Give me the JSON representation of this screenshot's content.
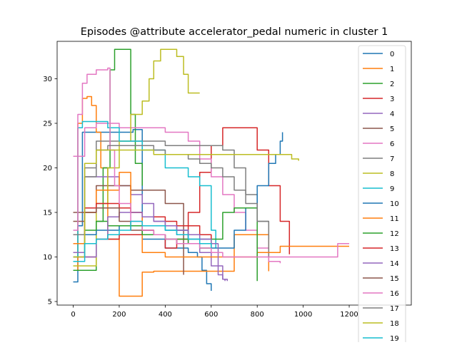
{
  "chart_data": {
    "type": "line",
    "title": "Episodes @attribute accelerator_pedal numeric in cluster 1",
    "xlabel": "",
    "ylabel": "",
    "xlim": [
      -70,
      1470
    ],
    "ylim": [
      4.6,
      34.2
    ],
    "x_ticks": [
      {
        "value": 0,
        "label": "0"
      },
      {
        "value": 200,
        "label": "200"
      },
      {
        "value": 400,
        "label": "400"
      },
      {
        "value": 600,
        "label": "600"
      },
      {
        "value": 800,
        "label": "800"
      },
      {
        "value": 1000,
        "label": "1000"
      },
      {
        "value": 1200,
        "label": "1200"
      }
    ],
    "y_ticks": [
      {
        "value": 5,
        "label": "5"
      },
      {
        "value": 10,
        "label": "10"
      },
      {
        "value": 15,
        "label": "15"
      },
      {
        "value": 20,
        "label": "20"
      },
      {
        "value": 25,
        "label": "25"
      },
      {
        "value": 30,
        "label": "30"
      }
    ],
    "grid": false,
    "legend_position": "top-right, clipped at the bottom of the figure",
    "series": [
      {
        "name": "0",
        "color": "#1f77b4",
        "x": [
          0,
          20,
          40,
          60,
          100,
          150,
          200,
          260,
          300,
          350,
          400,
          450,
          500,
          540,
          560,
          580,
          600
        ],
        "y": [
          7.2,
          13.5,
          24.0,
          24.0,
          24.0,
          24.0,
          24.0,
          24.3,
          12.0,
          12.0,
          11.0,
          11.0,
          10.5,
          10.0,
          8.5,
          7.0,
          6.2
        ]
      },
      {
        "name": "1",
        "color": "#ff7f0e",
        "x": [
          0,
          20,
          40,
          60,
          80,
          100,
          120,
          150,
          200,
          260,
          300,
          350,
          400,
          450,
          500,
          600,
          700,
          800,
          850
        ],
        "y": [
          8.5,
          25.0,
          27.8,
          28.0,
          27.0,
          24.0,
          20.0,
          12.0,
          5.6,
          5.6,
          8.3,
          8.4,
          8.4,
          8.4,
          8.4,
          8.4,
          12.5,
          12.5,
          8.4
        ]
      },
      {
        "name": "2",
        "color": "#2ca02c",
        "x": [
          0,
          60,
          100,
          130,
          160,
          180,
          200,
          240,
          250,
          270,
          300
        ],
        "y": [
          8.5,
          8.5,
          14.0,
          20.0,
          31.0,
          33.3,
          33.3,
          33.3,
          26.0,
          20.5,
          18.0
        ]
      },
      {
        "name": "3",
        "color": "#d62728",
        "x": [
          0,
          100,
          200,
          300,
          350,
          400,
          450,
          500,
          550,
          600,
          650,
          700,
          750,
          800,
          850,
          900,
          940
        ],
        "y": [
          10.0,
          12.0,
          12.5,
          13.0,
          12.5,
          11.0,
          12.0,
          15.0,
          19.5,
          22.5,
          24.5,
          24.5,
          24.5,
          22.0,
          18.0,
          14.0,
          10.3
        ]
      },
      {
        "name": "4",
        "color": "#9467bd",
        "x": [
          0,
          50,
          100,
          150,
          200,
          250,
          300,
          350,
          400,
          450,
          500,
          550,
          600,
          650,
          660
        ],
        "y": [
          10.5,
          19.0,
          19.0,
          19.0,
          18.0,
          17.0,
          16.0,
          14.0,
          13.5,
          12.5,
          11.5,
          10.5,
          9.0,
          7.5,
          7.3
        ]
      },
      {
        "name": "5",
        "color": "#8c564b",
        "x": [
          0,
          100,
          200,
          250,
          300,
          400,
          450,
          480
        ],
        "y": [
          15.0,
          18.0,
          18.0,
          17.5,
          17.5,
          16.0,
          16.0,
          8.0
        ]
      },
      {
        "name": "6",
        "color": "#e377c2",
        "x": [
          0,
          50,
          100,
          150,
          200,
          300,
          400,
          450,
          500,
          550,
          600,
          650,
          700,
          750,
          800,
          850,
          900
        ],
        "y": [
          21.3,
          24.5,
          25.0,
          25.0,
          24.5,
          24.5,
          24.0,
          24.0,
          23.0,
          21.0,
          19.0,
          17.0,
          15.0,
          13.0,
          11.0,
          9.5,
          9.3
        ]
      },
      {
        "name": "7",
        "color": "#7f7f7f",
        "x": [
          0,
          50,
          100,
          200,
          300,
          400,
          500,
          600,
          650,
          700,
          750,
          800,
          850
        ],
        "y": [
          12.5,
          19.0,
          23.0,
          23.0,
          23.0,
          22.5,
          22.5,
          22.5,
          22.0,
          20.0,
          17.0,
          14.0,
          10.0
        ]
      },
      {
        "name": "8",
        "color": "#bcbd22",
        "x": [
          0,
          100,
          150,
          200,
          250,
          300,
          330,
          350,
          380,
          400,
          430,
          450,
          480,
          500,
          550
        ],
        "y": [
          9.0,
          16.0,
          20.0,
          23.0,
          26.0,
          27.5,
          30.0,
          32.0,
          33.3,
          33.3,
          33.3,
          32.5,
          30.5,
          28.4,
          28.4
        ]
      },
      {
        "name": "9",
        "color": "#17becf",
        "x": [
          0,
          20,
          40,
          60,
          100,
          150,
          200,
          300,
          400,
          500,
          550,
          600,
          620
        ],
        "y": [
          10.0,
          24.5,
          25.2,
          25.2,
          25.2,
          24.5,
          23.0,
          22.0,
          20.0,
          19.0,
          18.0,
          13.0,
          11.0
        ]
      },
      {
        "name": "10",
        "color": "#1f77b4",
        "x": [
          0,
          100,
          200,
          300,
          400,
          500,
          600,
          700,
          750,
          800,
          850,
          880,
          900,
          910
        ],
        "y": [
          12.5,
          13.0,
          13.5,
          13.5,
          13.0,
          12.0,
          11.0,
          13.0,
          15.5,
          18.0,
          20.5,
          21.5,
          23.0,
          24.0
        ]
      },
      {
        "name": "11",
        "color": "#ff7f0e",
        "x": [
          0,
          50,
          100,
          150,
          200,
          250,
          300,
          350,
          400,
          500,
          600,
          700,
          800,
          900,
          1000,
          1100,
          1200
        ],
        "y": [
          11.5,
          15.0,
          17.5,
          17.5,
          19.5,
          15.0,
          10.5,
          10.5,
          10.0,
          10.0,
          10.0,
          10.0,
          10.5,
          11.2,
          11.2,
          11.2,
          11.2
        ]
      },
      {
        "name": "12",
        "color": "#2ca02c",
        "x": [
          0,
          50,
          100,
          150,
          200,
          300,
          400,
          500,
          550,
          600,
          650,
          700,
          750,
          800
        ],
        "y": [
          10.5,
          13.0,
          14.0,
          13.5,
          13.5,
          12.5,
          12.0,
          11.5,
          11.0,
          12.0,
          15.0,
          15.5,
          15.5,
          7.3
        ]
      },
      {
        "name": "13",
        "color": "#d62728",
        "x": [
          0,
          50,
          100,
          150,
          200,
          250,
          300,
          350,
          400,
          450,
          500,
          550,
          600
        ],
        "y": [
          12.5,
          15.5,
          16.0,
          16.0,
          15.5,
          15.0,
          14.5,
          14.5,
          14.0,
          13.5,
          13.5,
          12.5,
          12.0
        ]
      },
      {
        "name": "14",
        "color": "#9467bd",
        "x": [
          0,
          50,
          100,
          150,
          200,
          250,
          300,
          350,
          400,
          450,
          500,
          550,
          600,
          630,
          650,
          670
        ],
        "y": [
          10.5,
          10.0,
          12.0,
          14.5,
          15.0,
          15.0,
          14.5,
          14.0,
          13.5,
          13.0,
          12.5,
          12.0,
          11.5,
          8.0,
          7.5,
          7.3
        ]
      },
      {
        "name": "15",
        "color": "#8c564b",
        "x": [
          0,
          50,
          100,
          150,
          200,
          250,
          300,
          350,
          400,
          450,
          500
        ],
        "y": [
          14.0,
          15.0,
          15.5,
          15.5,
          14.0,
          13.0,
          13.0,
          12.5,
          12.0,
          11.5,
          11.5
        ]
      },
      {
        "name": "16",
        "color": "#e377c2",
        "x": [
          0,
          20,
          40,
          60,
          100,
          150,
          160,
          180,
          200,
          250,
          300,
          350,
          400,
          450,
          500,
          550,
          600,
          650,
          700,
          750,
          800,
          850,
          900,
          950,
          1000,
          1050,
          1100,
          1150,
          1200
        ],
        "y": [
          13.0,
          26.0,
          29.5,
          30.5,
          31.0,
          31.2,
          22.0,
          18.0,
          16.0,
          14.0,
          13.0,
          12.5,
          12.0,
          11.5,
          11.5,
          11.0,
          10.5,
          10.0,
          10.0,
          10.0,
          10.0,
          10.0,
          10.0,
          10.0,
          10.0,
          10.0,
          10.0,
          11.5,
          11.5
        ]
      },
      {
        "name": "17",
        "color": "#7f7f7f",
        "x": [
          0,
          50,
          100,
          150,
          200,
          250,
          300,
          350,
          400,
          450,
          500,
          550,
          600,
          650,
          700,
          750,
          800,
          850
        ],
        "y": [
          12.5,
          20.0,
          22.0,
          22.5,
          22.5,
          22.5,
          22.5,
          22.0,
          21.5,
          21.5,
          21.0,
          20.5,
          20.0,
          19.0,
          17.5,
          16.0,
          14.0,
          12.0
        ]
      },
      {
        "name": "18",
        "color": "#bcbd22",
        "x": [
          0,
          50,
          100,
          150,
          200,
          250,
          300,
          350,
          400,
          450,
          500,
          550,
          600,
          650,
          700,
          750,
          800,
          850,
          900,
          950,
          980
        ],
        "y": [
          10.0,
          20.5,
          22.0,
          22.0,
          22.0,
          22.0,
          22.0,
          21.5,
          21.5,
          21.5,
          21.5,
          21.5,
          21.5,
          21.5,
          21.5,
          21.5,
          21.5,
          21.5,
          21.5,
          21.0,
          20.8
        ]
      },
      {
        "name": "19",
        "color": "#17becf",
        "x": [
          0,
          50,
          100,
          150,
          200,
          250,
          300,
          350,
          400,
          450,
          500,
          550,
          600
        ],
        "y": [
          9.5,
          11.5,
          12.0,
          12.5,
          13.0,
          14.0,
          13.5,
          13.5,
          13.0,
          12.5,
          12.0,
          11.5,
          11.0
        ]
      }
    ]
  }
}
